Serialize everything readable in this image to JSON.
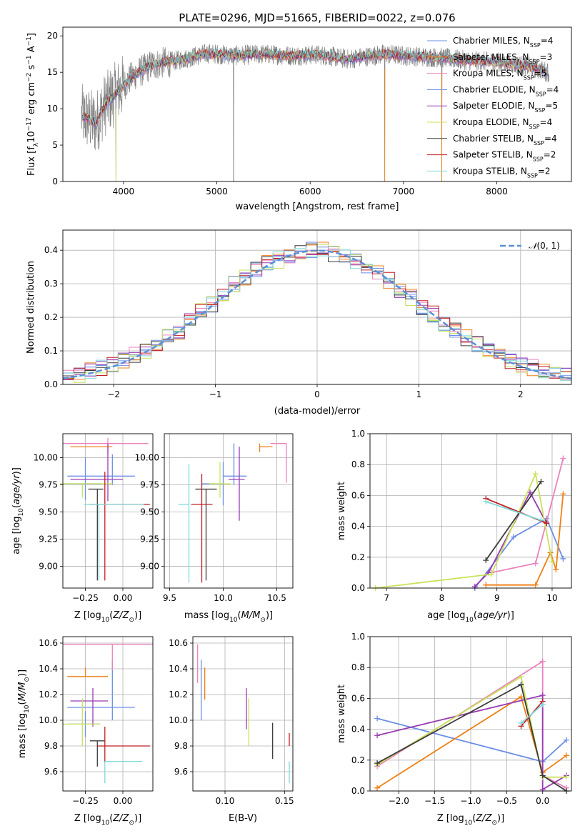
{
  "figure": {
    "title": "PLATE=0296, MJD=51665, FIBERID=0022, z=0.076"
  },
  "colors": {
    "spectrum": "#808080",
    "gaussian": "#5b8fd6",
    "models": [
      "#6b8ee6",
      "#f07f14",
      "#ec82bd",
      "#6b8ee6",
      "#9a3bb3",
      "#c8e35a",
      "#3c3c3c",
      "#c21e24",
      "#7fd9d9"
    ],
    "grid": "#b0b0b0"
  },
  "chart_data": [
    {
      "id": "spectrum",
      "type": "line",
      "xlabel": "wavelength [Angstrom, rest frame]",
      "ylabel": "Flux [f",
      "ylabel_full": "Flux [fλ10^-17 erg cm^-2 s^-1 A^-1]",
      "xlim": [
        3350,
        8800
      ],
      "ylim": [
        0,
        21.2
      ],
      "xticks": [
        4000,
        5000,
        6000,
        7000,
        8000
      ],
      "yticks": [
        0,
        5,
        10,
        15,
        20
      ],
      "grid": false,
      "legend_position": "right",
      "legend": [
        {
          "label": "Chabrier MILES, N",
          "n": "4",
          "color": "#6b8ee6"
        },
        {
          "label": "Salpeter MILES, N",
          "n": "3",
          "color": "#f07f14"
        },
        {
          "label": "Kroupa MILES, N",
          "n": "5",
          "color": "#ec82bd"
        },
        {
          "label": "Chabrier ELODIE, N",
          "n": "4",
          "color": "#6b8ee6"
        },
        {
          "label": "Salpeter ELODIE, N",
          "n": "5",
          "color": "#9a3bb3"
        },
        {
          "label": "Kroupa ELODIE, N",
          "n": "4",
          "color": "#c8e35a"
        },
        {
          "label": "Chabrier STELIB, N",
          "n": "4",
          "color": "#3c3c3c"
        },
        {
          "label": "Salpeter STELIB, N",
          "n": "2",
          "color": "#c21e24"
        },
        {
          "label": "Kroupa STELIB, N",
          "n": "2",
          "color": "#7fd9d9"
        }
      ],
      "continuum": [
        {
          "x": 3550,
          "y": 9.0
        },
        {
          "x": 3700,
          "y": 8.0
        },
        {
          "x": 3800,
          "y": 10.5
        },
        {
          "x": 3950,
          "y": 12.5
        },
        {
          "x": 4100,
          "y": 14.5
        },
        {
          "x": 4300,
          "y": 16.0
        },
        {
          "x": 4600,
          "y": 16.7
        },
        {
          "x": 4900,
          "y": 17.6
        },
        {
          "x": 5200,
          "y": 17.3
        },
        {
          "x": 5500,
          "y": 17.5
        },
        {
          "x": 5800,
          "y": 17.3
        },
        {
          "x": 6100,
          "y": 17.4
        },
        {
          "x": 6400,
          "y": 16.8
        },
        {
          "x": 6800,
          "y": 17.5
        },
        {
          "x": 7100,
          "y": 17.2
        },
        {
          "x": 7400,
          "y": 17.0
        },
        {
          "x": 7700,
          "y": 16.6
        },
        {
          "x": 8000,
          "y": 16.4
        },
        {
          "x": 8300,
          "y": 15.9
        },
        {
          "x": 8560,
          "y": 15.0
        }
      ],
      "drops": [
        {
          "x": 3920,
          "to": 0
        },
        {
          "x": 5180,
          "to": 0
        },
        {
          "x": 6800,
          "to": 0
        },
        {
          "x": 7410,
          "to": 0
        }
      ],
      "x_range": [
        3550,
        8560
      ]
    },
    {
      "id": "residuals",
      "type": "step",
      "xlabel": "(data-model)/error",
      "ylabel": "Normed distribution",
      "xlim": [
        -2.5,
        2.5
      ],
      "ylim": [
        0,
        0.46
      ],
      "xticks": [
        -2,
        -1,
        0,
        1,
        2
      ],
      "yticks": [
        0.0,
        0.1,
        0.2,
        0.3,
        0.4
      ],
      "grid": true,
      "legend_position": "top-right",
      "legend": [
        {
          "label": "N(0,1)"
        }
      ],
      "series_shape": [
        0.02,
        0.03,
        0.04,
        0.05,
        0.06,
        0.07,
        0.09,
        0.1,
        0.12,
        0.14,
        0.16,
        0.19,
        0.22,
        0.24,
        0.27,
        0.3,
        0.32,
        0.34,
        0.36,
        0.37,
        0.38,
        0.39,
        0.4,
        0.4,
        0.39,
        0.38,
        0.37,
        0.35,
        0.33,
        0.31,
        0.28,
        0.26,
        0.23,
        0.21,
        0.18,
        0.16,
        0.14,
        0.12,
        0.1,
        0.09,
        0.07,
        0.06,
        0.05,
        0.04,
        0.03,
        0.03
      ]
    },
    {
      "id": "age-vs-Z",
      "type": "errorbar",
      "xlabel": "Z [log",
      "ylabel": "age  [log",
      "xlim": [
        -0.4,
        0.2
      ],
      "ylim": [
        8.8,
        10.22
      ],
      "xticks": [
        -0.25,
        0.0
      ],
      "yticks": [
        9.0,
        9.25,
        9.5,
        9.75,
        10.0
      ],
      "grid": true,
      "points": [
        {
          "x": -0.07,
          "y": 9.83,
          "xerr": [
            0.3,
            0.15
          ],
          "yerr": [
            0.08,
            0.2
          ],
          "color": "#6b8ee6"
        },
        {
          "x": -0.2,
          "y": 10.1,
          "xerr": [
            0.15,
            0.13
          ],
          "yerr": [
            0.0,
            0.0
          ],
          "color": "#f07f14"
        },
        {
          "x": -0.1,
          "y": 10.13,
          "xerr": [
            0.3,
            0.27
          ],
          "yerr": [
            0.1,
            0.05
          ],
          "color": "#ec82bd"
        },
        {
          "x": -0.25,
          "y": 9.76,
          "xerr": [
            0.15,
            0.1
          ],
          "yerr": [
            0.15,
            0.24
          ],
          "color": "#6b8ee6"
        },
        {
          "x": -0.1,
          "y": 9.8,
          "xerr": [
            0.25,
            0.1
          ],
          "yerr": [
            0.2,
            0.33
          ],
          "color": "#9a3bb3"
        },
        {
          "x": -0.27,
          "y": 9.76,
          "xerr": [
            0.15,
            0.2
          ],
          "yerr": [
            0.13,
            0.0
          ],
          "color": "#c8e35a"
        },
        {
          "x": -0.17,
          "y": 9.71,
          "xerr": [
            0.06,
            0.04
          ],
          "yerr": [
            0.84,
            0.0
          ],
          "color": "#3c3c3c"
        },
        {
          "x": -0.12,
          "y": 9.57,
          "xerr": [
            0.1,
            0.3
          ],
          "yerr": [
            0.7,
            0.3
          ],
          "color": "#c21e24"
        },
        {
          "x": -0.16,
          "y": 9.57,
          "xerr": [
            0.1,
            0.3
          ],
          "yerr": [
            0.7,
            0.0
          ],
          "color": "#7fd9d9"
        }
      ]
    },
    {
      "id": "age-vs-mass",
      "type": "errorbar",
      "xlabel": "mass [log",
      "ylabel": "",
      "xlim": [
        9.45,
        10.65
      ],
      "ylim": [
        8.8,
        10.22
      ],
      "xticks": [
        9.5,
        10.0,
        10.5
      ],
      "yticks": [
        9.0,
        9.25,
        9.5,
        9.75,
        10.0
      ],
      "grid": true,
      "points": [
        {
          "x": 10.1,
          "y": 9.83,
          "xerr": [
            0.1,
            0.12
          ],
          "yerr": [
            0.08,
            0.3
          ],
          "color": "#6b8ee6"
        },
        {
          "x": 10.34,
          "y": 10.1,
          "xerr": [
            0.0,
            0.12
          ],
          "yerr": [
            0.05,
            0.03
          ],
          "color": "#f07f14"
        },
        {
          "x": 10.59,
          "y": 10.13,
          "xerr": [
            0.15,
            0.0
          ],
          "yerr": [
            0.36,
            0.0
          ],
          "color": "#ec82bd"
        },
        {
          "x": 10.0,
          "y": 9.76,
          "xerr": [
            0.2,
            0.0
          ],
          "yerr": [
            0.2,
            0.2
          ],
          "color": "#6b8ee6"
        },
        {
          "x": 10.15,
          "y": 9.8,
          "xerr": [
            0.1,
            0.05
          ],
          "yerr": [
            0.38,
            0.3
          ],
          "color": "#9a3bb3"
        },
        {
          "x": 9.97,
          "y": 9.76,
          "xerr": [
            0.1,
            0.1
          ],
          "yerr": [
            0.13,
            0.2
          ],
          "color": "#c8e35a"
        },
        {
          "x": 9.84,
          "y": 9.71,
          "xerr": [
            0.1,
            0.1
          ],
          "yerr": [
            0.84,
            0.0
          ],
          "color": "#3c3c3c"
        },
        {
          "x": 9.8,
          "y": 9.57,
          "xerr": [
            0.1,
            0.1
          ],
          "yerr": [
            0.72,
            0.28
          ],
          "color": "#c21e24"
        },
        {
          "x": 9.68,
          "y": 9.57,
          "xerr": [
            0.1,
            0.0
          ],
          "yerr": [
            0.72,
            0.37
          ],
          "color": "#7fd9d9"
        }
      ]
    },
    {
      "id": "weight-vs-age",
      "type": "line",
      "xlabel": "age  [log",
      "ylabel": "mass weight",
      "xlim": [
        6.7,
        10.35
      ],
      "ylim": [
        0,
        1.0
      ],
      "xticks": [
        7,
        8,
        9,
        10
      ],
      "yticks": [
        0.0,
        0.2,
        0.4,
        0.6,
        0.8,
        1.0
      ],
      "grid": true,
      "series": [
        {
          "color": "#6b8ee6",
          "points": [
            [
              8.6,
              0.0
            ],
            [
              9.3,
              0.33
            ],
            [
              9.9,
              0.45
            ],
            [
              10.2,
              0.19
            ]
          ]
        },
        {
          "color": "#f07f14",
          "points": [
            [
              8.8,
              0.02
            ],
            [
              9.7,
              0.02
            ],
            [
              9.97,
              0.23
            ],
            [
              10.07,
              0.12
            ],
            [
              10.2,
              0.61
            ]
          ]
        },
        {
          "color": "#ec82bd",
          "points": [
            [
              8.9,
              0.1
            ],
            [
              9.7,
              0.16
            ],
            [
              10.2,
              0.84
            ]
          ]
        },
        {
          "color": "#9a3bb3",
          "points": [
            [
              8.6,
              0.01
            ],
            [
              8.85,
              0.1
            ],
            [
              9.6,
              0.62
            ],
            [
              9.9,
              0.42
            ]
          ]
        },
        {
          "color": "#c8e35a",
          "points": [
            [
              6.8,
              0.0
            ],
            [
              8.9,
              0.09
            ],
            [
              9.7,
              0.74
            ],
            [
              10.0,
              0.17
            ]
          ]
        },
        {
          "color": "#3c3c3c",
          "points": [
            [
              8.8,
              0.18
            ],
            [
              9.8,
              0.69
            ]
          ]
        },
        {
          "color": "#c21e24",
          "points": [
            [
              8.8,
              0.58
            ],
            [
              9.9,
              0.42
            ]
          ]
        },
        {
          "color": "#7fd9d9",
          "points": [
            [
              8.8,
              0.56
            ],
            [
              9.8,
              0.44
            ]
          ]
        }
      ]
    },
    {
      "id": "mass-vs-Z",
      "type": "errorbar",
      "xlabel": "Z [log",
      "ylabel": "mass [log",
      "xlim": [
        -0.4,
        0.2
      ],
      "ylim": [
        9.45,
        10.65
      ],
      "xticks": [
        -0.25,
        0.0
      ],
      "yticks": [
        9.6,
        9.8,
        10.0,
        10.2,
        10.4,
        10.6
      ],
      "grid": true,
      "points": [
        {
          "x": -0.07,
          "y": 10.1,
          "xerr": [
            0.3,
            0.15
          ],
          "yerr": [
            0.1,
            0.37
          ],
          "color": "#6b8ee6"
        },
        {
          "x": -0.25,
          "y": 10.34,
          "xerr": [
            0.12,
            0.15
          ],
          "yerr": [
            0.0,
            0.07
          ],
          "color": "#f07f14"
        },
        {
          "x": -0.07,
          "y": 10.59,
          "xerr": [
            0.33,
            0.27
          ],
          "yerr": [
            0.2,
            0.0
          ],
          "color": "#ec82bd"
        },
        {
          "x": -0.25,
          "y": 9.97,
          "xerr": [
            0.12,
            0.1
          ],
          "yerr": [
            0.1,
            0.1
          ],
          "color": "#6b8ee6"
        },
        {
          "x": -0.2,
          "y": 10.15,
          "xerr": [
            0.15,
            0.1
          ],
          "yerr": [
            0.2,
            0.1
          ],
          "color": "#9a3bb3"
        },
        {
          "x": -0.27,
          "y": 9.97,
          "xerr": [
            0.13,
            0.12
          ],
          "yerr": [
            0.17,
            0.2
          ],
          "color": "#c8e35a"
        },
        {
          "x": -0.17,
          "y": 9.84,
          "xerr": [
            0.05,
            0.05
          ],
          "yerr": [
            0.2,
            0.0
          ],
          "color": "#3c3c3c"
        },
        {
          "x": -0.12,
          "y": 9.8,
          "xerr": [
            0.05,
            0.3
          ],
          "yerr": [
            0.13,
            0.15
          ],
          "color": "#c21e24"
        },
        {
          "x": -0.12,
          "y": 9.68,
          "xerr": [
            0.0,
            0.25
          ],
          "yerr": [
            0.17,
            0.0
          ],
          "color": "#7fd9d9"
        }
      ]
    },
    {
      "id": "mass-vs-EBV",
      "type": "errorbar",
      "xlabel": "E(B-V)",
      "ylabel": "",
      "xlim": [
        0.073,
        0.157
      ],
      "ylim": [
        9.45,
        10.65
      ],
      "xticks": [
        0.1,
        0.15
      ],
      "yticks": [
        9.6,
        9.8,
        10.0,
        10.2,
        10.4,
        10.6
      ],
      "grid": true,
      "points": [
        {
          "x": 0.08,
          "y": 10.1,
          "yerr": [
            0.1,
            0.37
          ],
          "color": "#6b8ee6"
        },
        {
          "x": 0.083,
          "y": 10.34,
          "yerr": [
            0.18,
            0.07
          ],
          "color": "#f07f14"
        },
        {
          "x": 0.077,
          "y": 10.59,
          "yerr": [
            0.3,
            0.0
          ],
          "color": "#ec82bd"
        },
        {
          "x": 0.118,
          "y": 10.15,
          "yerr": [
            0.22,
            0.1
          ],
          "color": "#9a3bb3"
        },
        {
          "x": 0.12,
          "y": 9.97,
          "yerr": [
            0.17,
            0.2
          ],
          "color": "#c8e35a"
        },
        {
          "x": 0.14,
          "y": 9.84,
          "yerr": [
            0.14,
            0.14
          ],
          "color": "#3c3c3c"
        },
        {
          "x": 0.154,
          "y": 9.8,
          "yerr": [
            0.0,
            0.1
          ],
          "color": "#c21e24"
        },
        {
          "x": 0.154,
          "y": 9.68,
          "yerr": [
            0.17,
            0.0
          ],
          "color": "#7fd9d9"
        }
      ]
    },
    {
      "id": "weight-vs-Z",
      "type": "line",
      "xlabel": "Z [log",
      "ylabel": "mass weight",
      "xlim": [
        -2.4,
        0.4
      ],
      "ylim": [
        0,
        1.0
      ],
      "xticks": [
        -2.0,
        -1.5,
        -1.0,
        -0.5,
        0.0
      ],
      "yticks": [
        0.0,
        0.2,
        0.4,
        0.6,
        0.8,
        1.0
      ],
      "grid": true,
      "series": [
        {
          "color": "#6b8ee6",
          "points": [
            [
              -2.3,
              0.47
            ],
            [
              0.0,
              0.19
            ],
            [
              0.33,
              0.33
            ]
          ]
        },
        {
          "color": "#f07f14",
          "points": [
            [
              -2.3,
              0.02
            ],
            [
              -0.3,
              0.61
            ],
            [
              0.0,
              0.12
            ],
            [
              0.33,
              0.23
            ]
          ]
        },
        {
          "color": "#ec82bd",
          "points": [
            [
              -2.3,
              0.16
            ],
            [
              0.0,
              0.84
            ],
            [
              0.0,
              0.1
            ],
            [
              0.33,
              0.02
            ]
          ]
        },
        {
          "color": "#9a3bb3",
          "points": [
            [
              -2.3,
              0.36
            ],
            [
              0.0,
              0.62
            ],
            [
              0.0,
              0.01
            ],
            [
              0.33,
              0.1
            ]
          ]
        },
        {
          "color": "#c8e35a",
          "points": [
            [
              -2.3,
              0.17
            ],
            [
              -0.3,
              0.74
            ],
            [
              0.0,
              0.09
            ],
            [
              0.33,
              0.09
            ]
          ]
        },
        {
          "color": "#3c3c3c",
          "points": [
            [
              -2.3,
              0.18
            ],
            [
              -0.3,
              0.69
            ],
            [
              0.0,
              0.1
            ],
            [
              0.33,
              0.0
            ]
          ]
        },
        {
          "color": "#c21e24",
          "points": [
            [
              -0.3,
              0.42
            ],
            [
              0.0,
              0.58
            ]
          ]
        },
        {
          "color": "#7fd9d9",
          "points": [
            [
              -0.3,
              0.44
            ],
            [
              0.0,
              0.56
            ]
          ]
        }
      ]
    }
  ]
}
